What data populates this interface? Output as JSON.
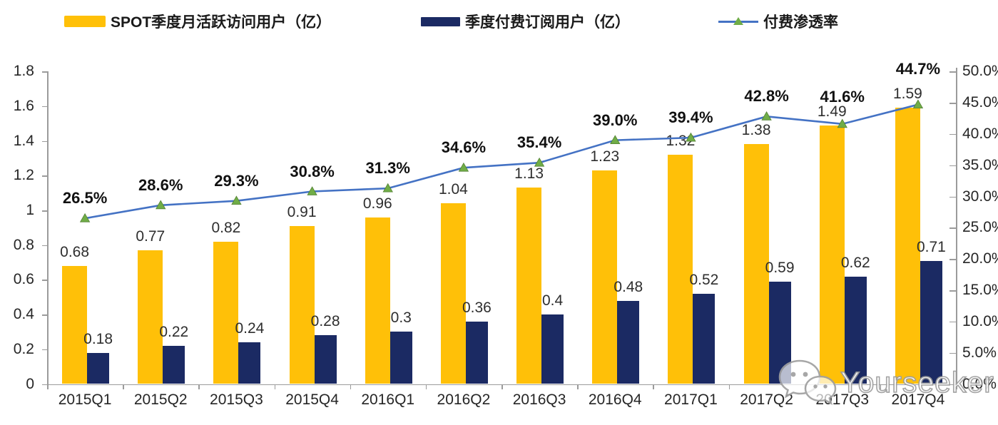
{
  "legend": {
    "items": [
      {
        "label": "SPOT季度月活跃访问用户（亿）",
        "swatch": "yellow-bar-swatch"
      },
      {
        "label": "季度付费订阅用户（亿）",
        "swatch": "navy-bar-swatch"
      },
      {
        "label": "付费渗透率",
        "swatch": "line-marker-swatch"
      }
    ]
  },
  "colors": {
    "mau_bar": "#FFC008",
    "subs_bar": "#1B2A63",
    "line": "#4472C4",
    "marker_fill": "#70AD47",
    "marker_edge": "#548235",
    "axis": "#9b9b9b"
  },
  "watermark": {
    "brand": "Yourseeker",
    "icon": "wechat-icon"
  },
  "chart_data": {
    "type": "bar+line combo",
    "title": "",
    "categories": [
      "2015Q1",
      "2015Q2",
      "2015Q3",
      "2015Q4",
      "2016Q1",
      "2016Q2",
      "2016Q3",
      "2016Q4",
      "2017Q1",
      "2017Q2",
      "2017Q3",
      "2017Q4"
    ],
    "series": [
      {
        "name": "SPOT季度月活跃访问用户（亿）",
        "type": "bar",
        "axis": "left",
        "color": "#FFC008",
        "values": [
          0.68,
          0.77,
          0.82,
          0.91,
          0.96,
          1.04,
          1.13,
          1.23,
          1.32,
          1.38,
          1.49,
          1.59
        ],
        "labels": [
          "0.68",
          "0.77",
          "0.82",
          "0.91",
          "0.96",
          "1.04",
          "1.13",
          "1.23",
          "1.32",
          "1.38",
          "1.49",
          "1.59"
        ]
      },
      {
        "name": "季度付费订阅用户（亿）",
        "type": "bar",
        "axis": "left",
        "color": "#1B2A63",
        "values": [
          0.18,
          0.22,
          0.24,
          0.28,
          0.3,
          0.36,
          0.4,
          0.48,
          0.52,
          0.59,
          0.62,
          0.71
        ],
        "labels": [
          "0.18",
          "0.22",
          "0.24",
          "0.28",
          "0.3",
          "0.36",
          "0.4",
          "0.48",
          "0.52",
          "0.59",
          "0.62",
          "0.71"
        ]
      },
      {
        "name": "付费渗透率",
        "type": "line",
        "axis": "right",
        "color": "#4472C4",
        "marker": "triangle",
        "marker_color": "#70AD47",
        "values": [
          26.5,
          28.6,
          29.3,
          30.8,
          31.3,
          34.6,
          35.4,
          39.0,
          39.4,
          42.8,
          41.6,
          44.7
        ],
        "labels": [
          "26.5%",
          "28.6%",
          "29.3%",
          "30.8%",
          "31.3%",
          "34.6%",
          "35.4%",
          "39.0%",
          "39.4%",
          "42.8%",
          "41.6%",
          "44.7%"
        ]
      }
    ],
    "left_axis": {
      "min": 0,
      "max": 1.8,
      "tick_labels": [
        "0",
        "0.2",
        "0.4",
        "0.6",
        "0.8",
        "1",
        "1.2",
        "1.4",
        "1.6",
        "1.8"
      ]
    },
    "right_axis": {
      "min": 0,
      "max": 50,
      "tick_labels": [
        "0.0%",
        "5.0%",
        "10.0%",
        "15.0%",
        "20.0%",
        "25.0%",
        "30.0%",
        "35.0%",
        "40.0%",
        "45.0%",
        "50.0%"
      ]
    },
    "grid": false,
    "legend_position": "top"
  }
}
